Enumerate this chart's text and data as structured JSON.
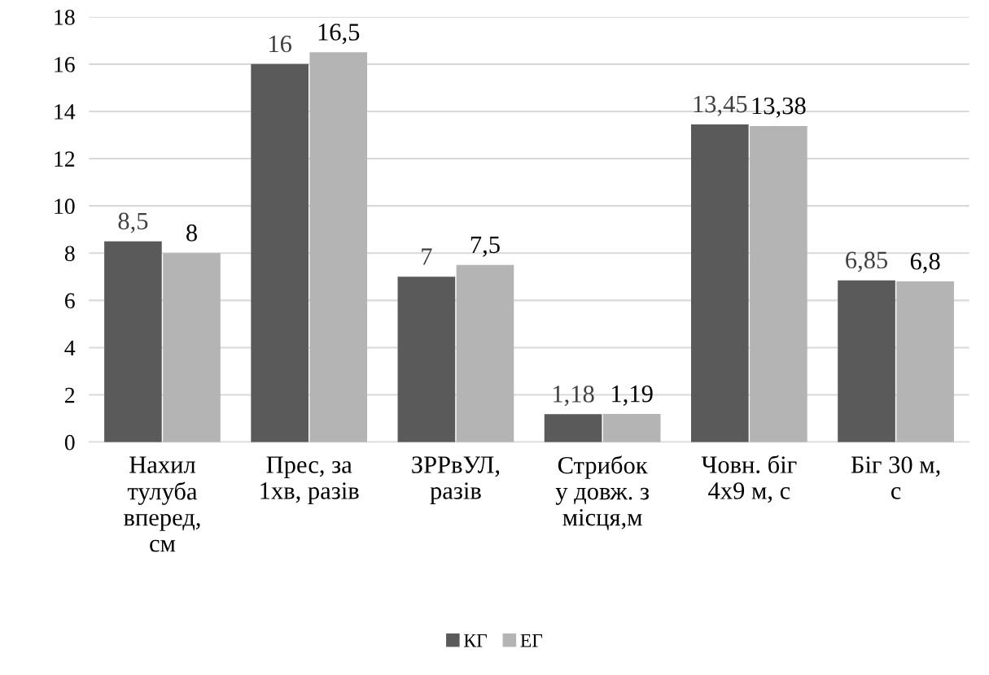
{
  "chart_data": {
    "type": "bar",
    "categories": [
      "Нахил\nтулуба\nвперед,\nсм",
      "Прес, за\n1хв, разів",
      "ЗРРвУЛ,\nразів",
      "Стрибок\nу довж. з\nмісця,м",
      "Човн. біг\n4х9 м, с",
      "Біг 30 м,\nс"
    ],
    "series": [
      {
        "name": "КГ",
        "color": "#5a5a5a",
        "values": [
          8.5,
          16,
          7,
          1.18,
          13.45,
          6.85
        ],
        "value_labels": [
          "8,5",
          "16",
          "7",
          "1,18",
          "13,45",
          "6,85"
        ]
      },
      {
        "name": "ЕГ",
        "color": "#b4b4b4",
        "values": [
          8,
          16.5,
          7.5,
          1.19,
          13.38,
          6.8
        ],
        "value_labels": [
          "8",
          "16,5",
          "7,5",
          "1,19",
          "13,38",
          "6,8"
        ]
      }
    ],
    "ylim": [
      0,
      18
    ],
    "yticks": [
      0,
      2,
      4,
      6,
      8,
      10,
      12,
      14,
      16,
      18
    ],
    "grid": "y",
    "legend": "bottom"
  }
}
